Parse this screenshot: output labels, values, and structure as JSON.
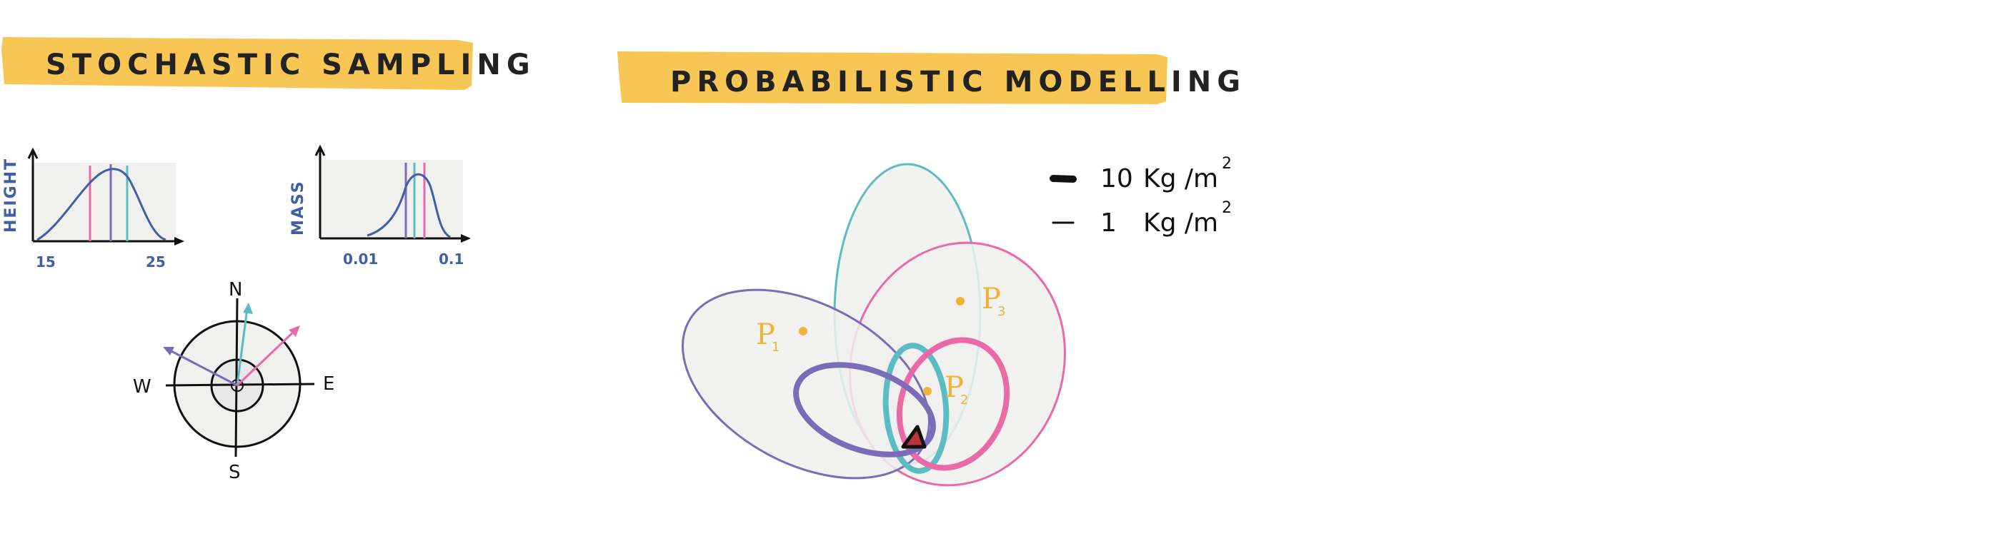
{
  "stochastic": {
    "title": "STOCHASTIC SAMPLING",
    "height_plot": {
      "ylabel": "HEIGHT",
      "xmin_label": "15",
      "xmax_label": "25"
    },
    "mass_plot": {
      "ylabel": "MASS",
      "xmin_label": "0.01",
      "xmax_label": "0.1"
    },
    "compass": {
      "north": "N",
      "south": "S",
      "east": "E",
      "west": "W"
    }
  },
  "probabilistic": {
    "title": "PROBABILISTIC MODELLING",
    "points": [
      {
        "label": "P",
        "sub": "1"
      },
      {
        "label": "P",
        "sub": "2"
      },
      {
        "label": "P",
        "sub": "3"
      }
    ],
    "legend": [
      {
        "value": "10",
        "unit": "Kg /m",
        "exp": "2"
      },
      {
        "value": "1",
        "unit": "Kg /m",
        "exp": "2"
      }
    ]
  },
  "colors": {
    "banner": "#f8c655",
    "purple": "#7b6cb8",
    "teal": "#5cbcc4",
    "pink": "#e96aa6",
    "blue": "#3f5fa6",
    "orange_point": "#f2b137",
    "volcano": "#b8353a",
    "panel_gray": "#f0f0ef"
  }
}
